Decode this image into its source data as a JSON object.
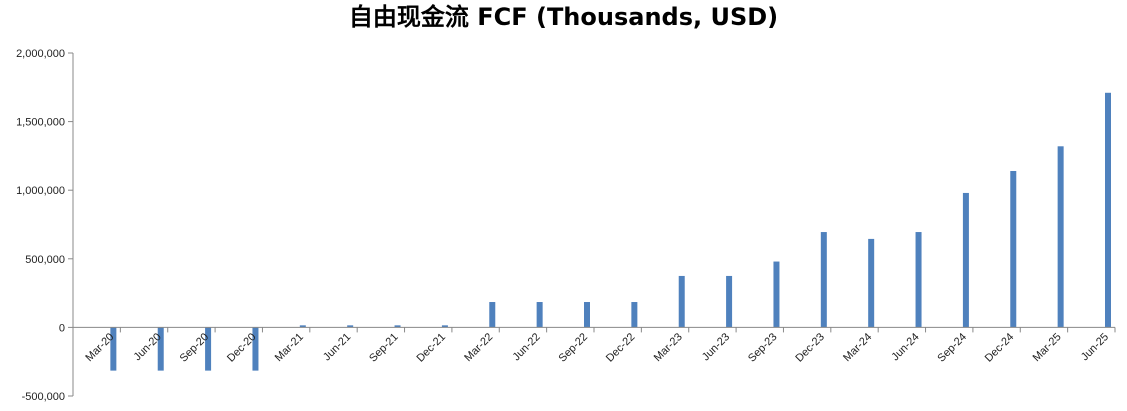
{
  "chart_data": {
    "type": "bar",
    "title": "自由现金流 FCF (Thousands, USD)",
    "xlabel": "",
    "ylabel": "",
    "ylim": [
      -500000,
      2000000
    ],
    "yticks": [
      -500000,
      0,
      500000,
      1000000,
      1500000,
      2000000
    ],
    "ytick_labels": [
      "-500,000",
      "0",
      "500,000",
      "1,000,000",
      "1,500,000",
      "2,000,000"
    ],
    "grid": false,
    "legend": "none",
    "bar_color": "#4F81BD",
    "categories": [
      "Mar-20",
      "Jun-20",
      "Sep-20",
      "Dec-20",
      "Mar-21",
      "Jun-21",
      "Sep-21",
      "Dec-21",
      "Mar-22",
      "Jun-22",
      "Sep-22",
      "Dec-22",
      "Mar-23",
      "Jun-23",
      "Sep-23",
      "Dec-23",
      "Mar-24",
      "Jun-24",
      "Sep-24",
      "Dec-24",
      "Mar-25",
      "Jun-25"
    ],
    "values": [
      -315000,
      -315000,
      -315000,
      -315000,
      15000,
      15000,
      15000,
      15000,
      185000,
      185000,
      185000,
      185000,
      375000,
      375000,
      480000,
      695000,
      645000,
      695000,
      980000,
      1140000,
      1320000,
      1710000
    ]
  }
}
